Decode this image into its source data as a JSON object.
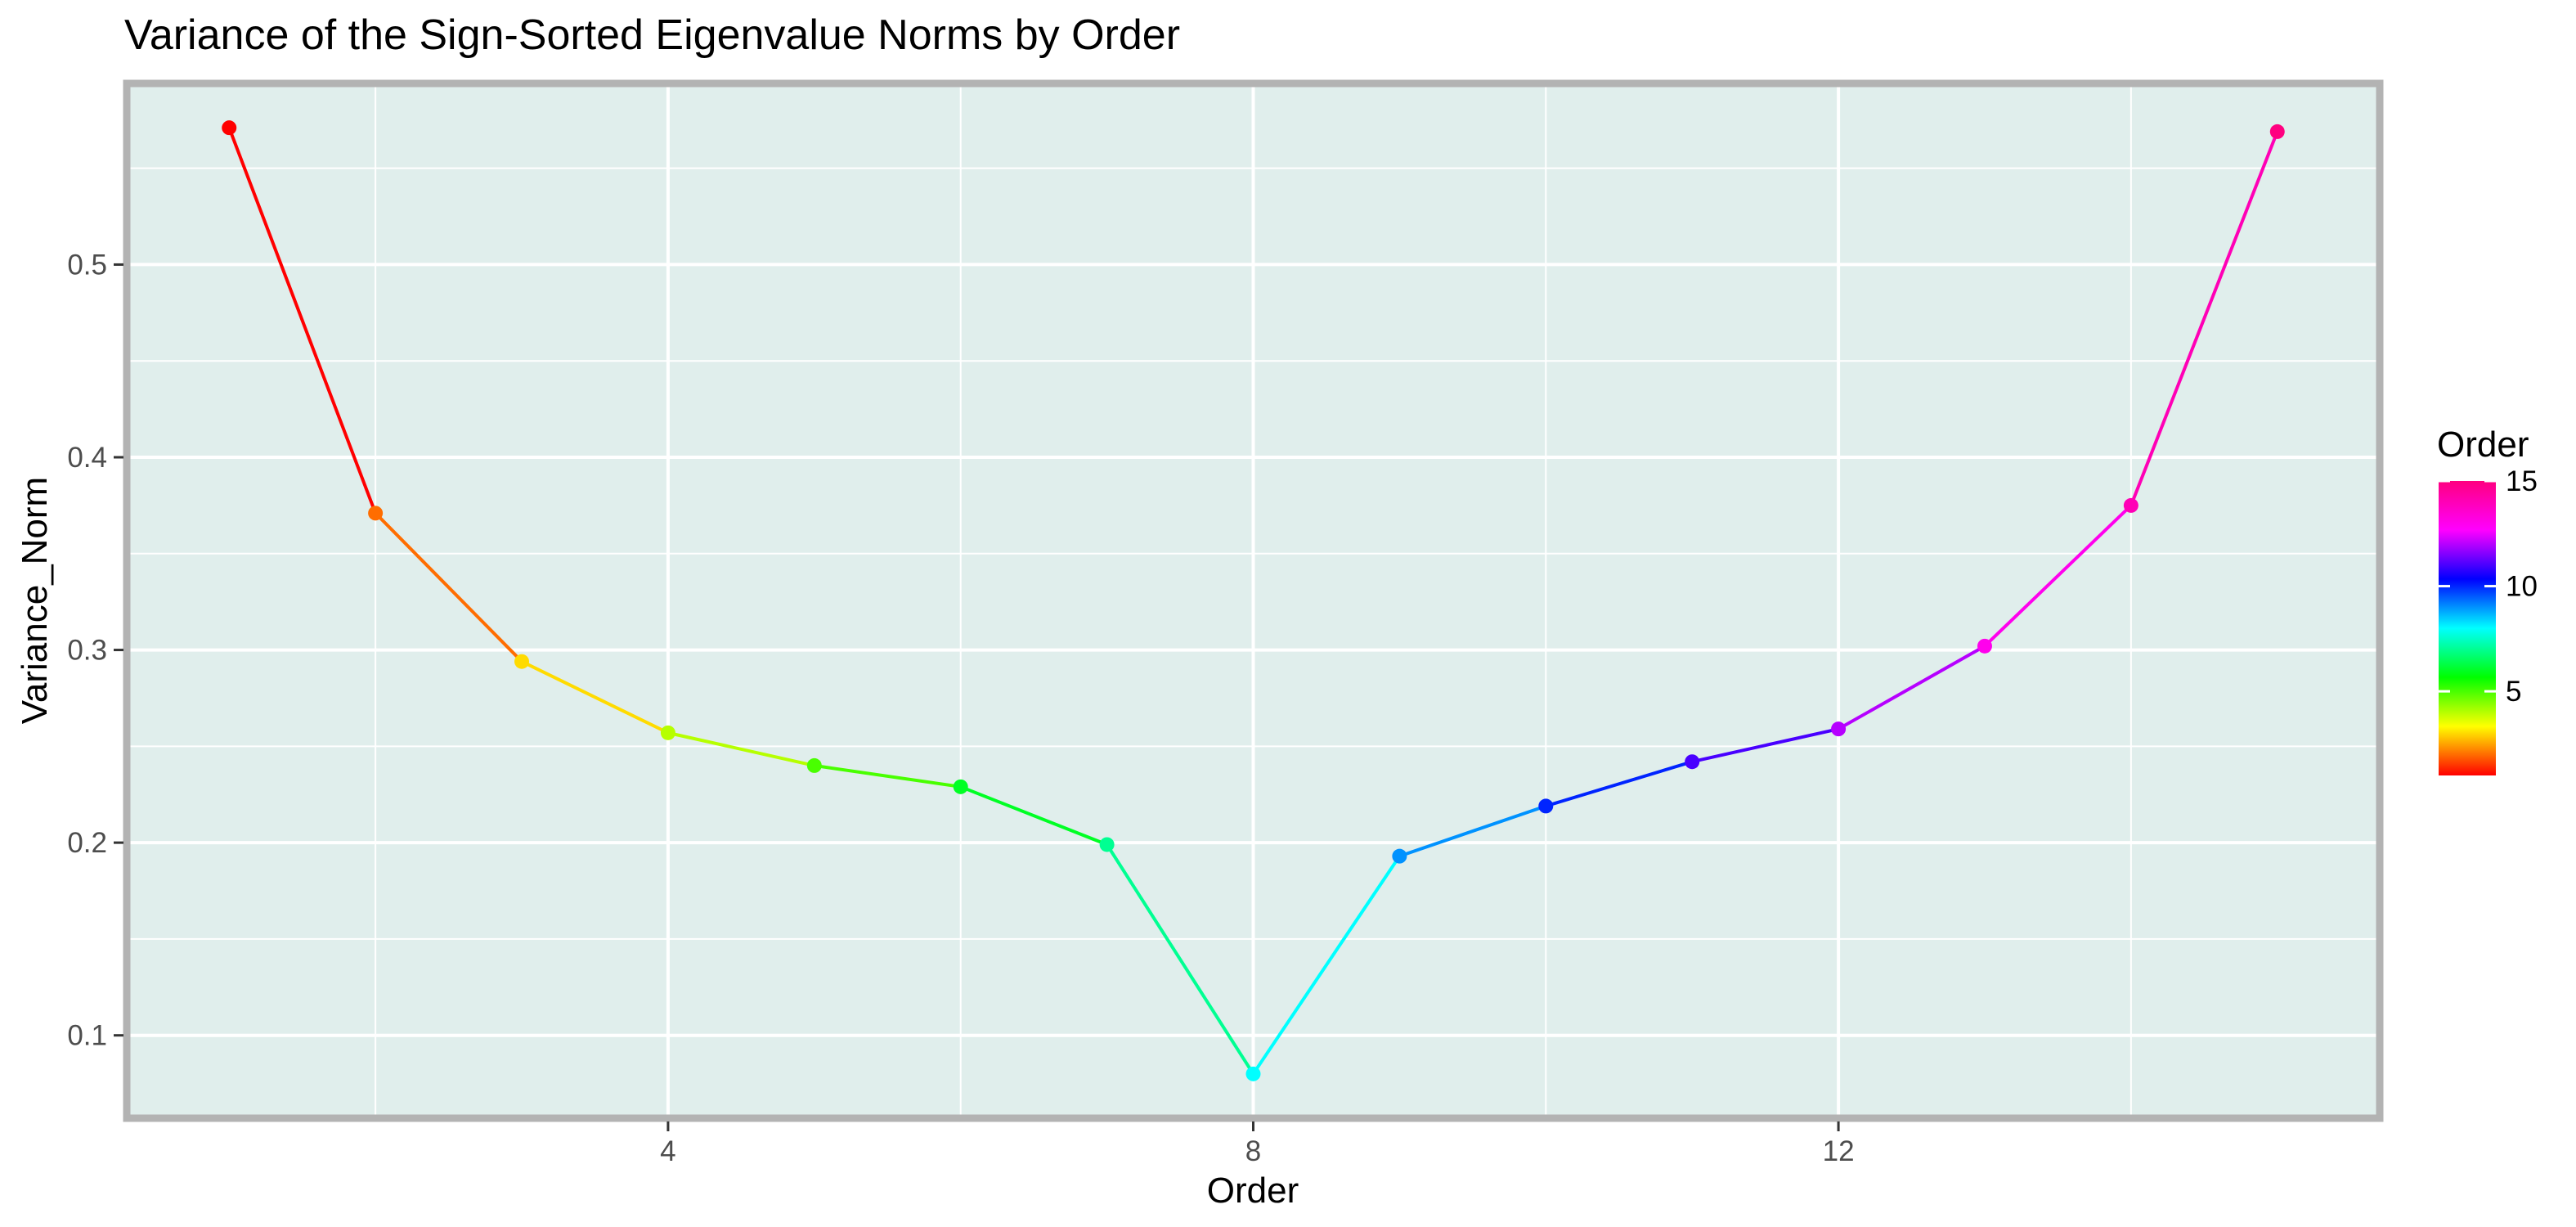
{
  "chart_data": {
    "type": "line",
    "title": "Variance of the Sign-Sorted Eigenvalue Norms by Order",
    "xlabel": "Order",
    "ylabel": "Variance_Norm",
    "x": [
      1,
      2,
      3,
      4,
      5,
      6,
      7,
      8,
      9,
      10,
      11,
      12,
      13,
      14,
      15
    ],
    "y": [
      0.571,
      0.371,
      0.294,
      0.257,
      0.24,
      0.229,
      0.199,
      0.08,
      0.193,
      0.219,
      0.242,
      0.259,
      0.302,
      0.375,
      0.569
    ],
    "xlim": [
      0.3,
      15.7
    ],
    "ylim": [
      0.057,
      0.594
    ],
    "x_ticks": [
      4,
      8,
      12
    ],
    "y_ticks": [
      0.1,
      0.2,
      0.3,
      0.4,
      0.5
    ],
    "x_tick_labels": [
      "4",
      "8",
      "12"
    ],
    "y_tick_labels": [
      "0.1",
      "0.2",
      "0.3",
      "0.4",
      "0.5"
    ],
    "color_scale": "rainbow",
    "grid": true,
    "legend": {
      "title": "Order",
      "placement": "right",
      "range": [
        1,
        15
      ],
      "ticks": [
        5,
        10,
        15
      ],
      "tick_labels": [
        "5",
        "10",
        "15"
      ]
    },
    "panel_background": "#e0eeec",
    "panel_border": "#b3b3b3",
    "gridline_color": "#ffffff"
  }
}
